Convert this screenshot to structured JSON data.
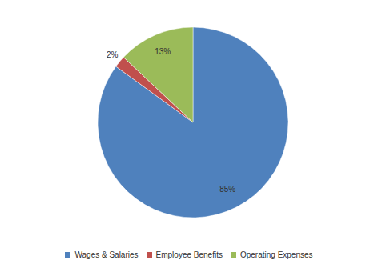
{
  "chart_data": {
    "type": "pie",
    "categories": [
      "Wages & Salaries",
      "Employee Benefits",
      "Operating Expenses"
    ],
    "values": [
      85,
      2,
      13
    ],
    "value_labels": [
      "85%",
      "2%",
      "13%"
    ],
    "colors": [
      "#4f81bd",
      "#c0504d",
      "#9bbb59"
    ],
    "data_labels": true,
    "legend": "bottom"
  }
}
